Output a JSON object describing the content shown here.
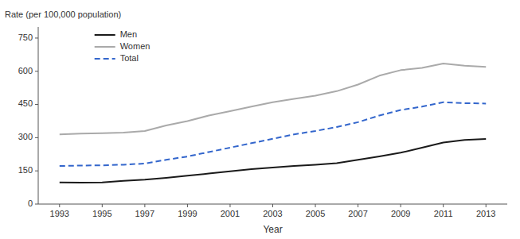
{
  "chart_data": {
    "type": "line",
    "x_label": "Year",
    "y_label": "Rate (per 100,000 population)",
    "x": [
      1993,
      1994,
      1995,
      1996,
      1997,
      1998,
      1999,
      2000,
      2001,
      2002,
      2003,
      2004,
      2005,
      2006,
      2007,
      2008,
      2009,
      2010,
      2011,
      2012,
      2013
    ],
    "series": [
      {
        "name": "Men",
        "color": "#1a1a1a",
        "line_style": "solid",
        "values": [
          98,
          97,
          98,
          105,
          110,
          118,
          128,
          138,
          148,
          158,
          165,
          172,
          178,
          185,
          200,
          215,
          232,
          255,
          278,
          290,
          294
        ]
      },
      {
        "name": "Women",
        "color": "#aaaaaa",
        "line_style": "solid",
        "values": [
          315,
          318,
          320,
          323,
          330,
          355,
          375,
          400,
          420,
          440,
          460,
          475,
          490,
          510,
          540,
          580,
          605,
          615,
          635,
          625,
          620
        ]
      },
      {
        "name": "Total",
        "color": "#3366cc",
        "line_style": "dashed",
        "values": [
          172,
          174,
          175,
          178,
          183,
          200,
          215,
          235,
          255,
          275,
          295,
          315,
          330,
          348,
          370,
          400,
          425,
          440,
          460,
          456,
          454
        ]
      }
    ],
    "xlim": [
      1992,
      2014
    ],
    "xticks": [
      1993,
      1995,
      1997,
      1999,
      2001,
      2003,
      2005,
      2007,
      2009,
      2011,
      2013
    ],
    "ylim": [
      0,
      800
    ],
    "yticks": [
      0,
      150,
      300,
      450,
      600,
      750
    ],
    "grid": false,
    "legend": "upper left"
  }
}
